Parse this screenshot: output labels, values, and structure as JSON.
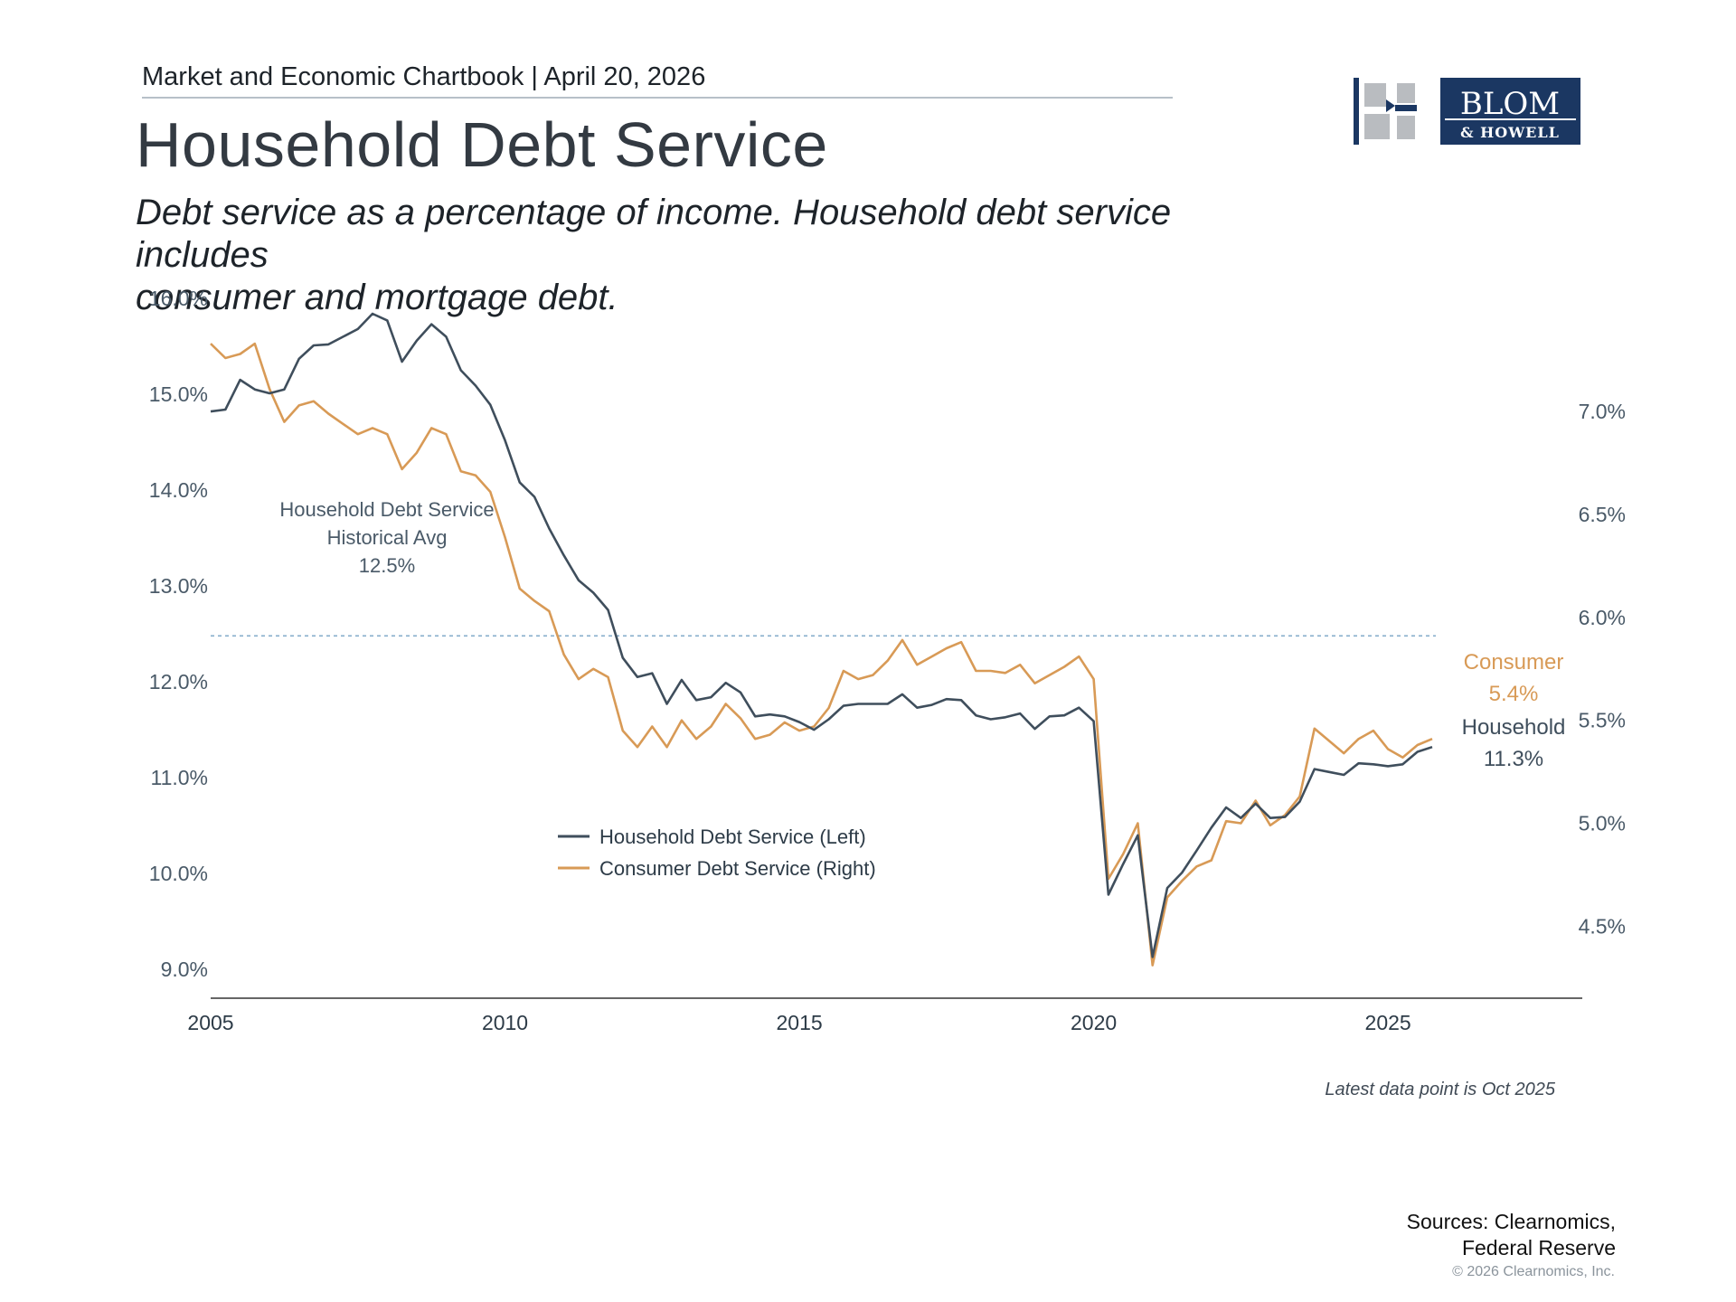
{
  "header": {
    "chartbook": "Market and Economic Chartbook | April 20, 2026",
    "title": "Household Debt Service",
    "subtitle_line1": "Debt service as a percentage of income. Household debt service includes",
    "subtitle_line2": "consumer and mortgage debt."
  },
  "logo": {
    "line1": "BLOM",
    "line2": "& HOWELL",
    "color": "#1b3762"
  },
  "colors": {
    "household": "#3f4e5c",
    "consumer": "#d89a56",
    "avg_line": "#8fb3cf",
    "axis": "#333333",
    "text": "#4a5a68"
  },
  "chart_data": {
    "type": "line",
    "x_ticks": [
      "2005",
      "2010",
      "2015",
      "2020",
      "2025"
    ],
    "xlim": [
      2005,
      2028.3
    ],
    "y_left_ticks": [
      "16.0%",
      "15.0%",
      "14.0%",
      "13.0%",
      "12.0%",
      "11.0%",
      "10.0%",
      "9.0%"
    ],
    "y_left_lim": [
      8.7,
      16.0
    ],
    "y_right_ticks": [
      "7.0%",
      "6.5%",
      "6.0%",
      "5.5%",
      "5.0%",
      "4.5%"
    ],
    "y_right_lim": [
      4.15,
      7.55
    ],
    "average": {
      "label_line1": "Household Debt Service",
      "label_line2": "Historical Avg",
      "label_value": "12.5%",
      "value": 12.48
    },
    "legend": {
      "household": "Household Debt Service (Left)",
      "consumer": "Consumer Debt Service (Right)"
    },
    "end_labels": {
      "consumer_name": "Consumer",
      "consumer_value": "5.4%",
      "household_name": "Household",
      "household_value": "11.3%"
    },
    "series": [
      {
        "name": "Household Debt Service (Left)",
        "axis": "left",
        "points": [
          [
            2005.0,
            14.82
          ],
          [
            2005.25,
            14.84
          ],
          [
            2005.5,
            15.15
          ],
          [
            2005.75,
            15.05
          ],
          [
            2006.0,
            15.01
          ],
          [
            2006.25,
            15.05
          ],
          [
            2006.5,
            15.37
          ],
          [
            2006.75,
            15.51
          ],
          [
            2007.0,
            15.52
          ],
          [
            2007.25,
            15.6
          ],
          [
            2007.5,
            15.68
          ],
          [
            2007.75,
            15.84
          ],
          [
            2008.0,
            15.77
          ],
          [
            2008.25,
            15.34
          ],
          [
            2008.5,
            15.56
          ],
          [
            2008.75,
            15.73
          ],
          [
            2009.0,
            15.6
          ],
          [
            2009.25,
            15.25
          ],
          [
            2009.5,
            15.09
          ],
          [
            2009.75,
            14.89
          ],
          [
            2010.0,
            14.52
          ],
          [
            2010.25,
            14.08
          ],
          [
            2010.5,
            13.93
          ],
          [
            2010.75,
            13.6
          ],
          [
            2011.0,
            13.32
          ],
          [
            2011.25,
            13.06
          ],
          [
            2011.5,
            12.93
          ],
          [
            2011.75,
            12.75
          ],
          [
            2012.0,
            12.25
          ],
          [
            2012.25,
            12.05
          ],
          [
            2012.5,
            12.09
          ],
          [
            2012.75,
            11.77
          ],
          [
            2013.0,
            12.02
          ],
          [
            2013.25,
            11.81
          ],
          [
            2013.5,
            11.84
          ],
          [
            2013.75,
            11.99
          ],
          [
            2014.0,
            11.89
          ],
          [
            2014.25,
            11.64
          ],
          [
            2014.5,
            11.66
          ],
          [
            2014.75,
            11.64
          ],
          [
            2015.0,
            11.58
          ],
          [
            2015.25,
            11.5
          ],
          [
            2015.5,
            11.61
          ],
          [
            2015.75,
            11.75
          ],
          [
            2016.0,
            11.77
          ],
          [
            2016.25,
            11.77
          ],
          [
            2016.5,
            11.77
          ],
          [
            2016.75,
            11.87
          ],
          [
            2017.0,
            11.73
          ],
          [
            2017.25,
            11.76
          ],
          [
            2017.5,
            11.82
          ],
          [
            2017.75,
            11.81
          ],
          [
            2018.0,
            11.65
          ],
          [
            2018.25,
            11.61
          ],
          [
            2018.5,
            11.63
          ],
          [
            2018.75,
            11.67
          ],
          [
            2019.0,
            11.51
          ],
          [
            2019.25,
            11.64
          ],
          [
            2019.5,
            11.65
          ],
          [
            2019.75,
            11.73
          ],
          [
            2020.0,
            11.59
          ],
          [
            2020.25,
            9.78
          ],
          [
            2020.5,
            10.1
          ],
          [
            2020.75,
            10.4
          ],
          [
            2021.0,
            9.13
          ],
          [
            2021.25,
            9.85
          ],
          [
            2021.5,
            10.01
          ],
          [
            2021.75,
            10.24
          ],
          [
            2022.0,
            10.48
          ],
          [
            2022.25,
            10.69
          ],
          [
            2022.5,
            10.58
          ],
          [
            2022.75,
            10.73
          ],
          [
            2023.0,
            10.58
          ],
          [
            2023.25,
            10.59
          ],
          [
            2023.5,
            10.75
          ],
          [
            2023.75,
            11.09
          ],
          [
            2024.0,
            11.06
          ],
          [
            2024.25,
            11.03
          ],
          [
            2024.5,
            11.15
          ],
          [
            2024.75,
            11.14
          ],
          [
            2025.0,
            11.12
          ],
          [
            2025.25,
            11.14
          ],
          [
            2025.5,
            11.27
          ],
          [
            2025.75,
            11.32
          ]
        ]
      },
      {
        "name": "Consumer Debt Service (Right)",
        "axis": "right",
        "points": [
          [
            2005.0,
            7.33
          ],
          [
            2005.25,
            7.26
          ],
          [
            2005.5,
            7.28
          ],
          [
            2005.75,
            7.33
          ],
          [
            2006.0,
            7.11
          ],
          [
            2006.25,
            6.95
          ],
          [
            2006.5,
            7.03
          ],
          [
            2006.75,
            7.05
          ],
          [
            2007.0,
            6.99
          ],
          [
            2007.25,
            6.94
          ],
          [
            2007.5,
            6.89
          ],
          [
            2007.75,
            6.92
          ],
          [
            2008.0,
            6.89
          ],
          [
            2008.25,
            6.72
          ],
          [
            2008.5,
            6.8
          ],
          [
            2008.75,
            6.92
          ],
          [
            2009.0,
            6.89
          ],
          [
            2009.25,
            6.71
          ],
          [
            2009.5,
            6.69
          ],
          [
            2009.75,
            6.61
          ],
          [
            2010.0,
            6.39
          ],
          [
            2010.25,
            6.14
          ],
          [
            2010.5,
            6.08
          ],
          [
            2010.75,
            6.03
          ],
          [
            2011.0,
            5.82
          ],
          [
            2011.25,
            5.7
          ],
          [
            2011.5,
            5.75
          ],
          [
            2011.75,
            5.71
          ],
          [
            2012.0,
            5.45
          ],
          [
            2012.25,
            5.37
          ],
          [
            2012.5,
            5.47
          ],
          [
            2012.75,
            5.37
          ],
          [
            2013.0,
            5.5
          ],
          [
            2013.25,
            5.41
          ],
          [
            2013.5,
            5.47
          ],
          [
            2013.75,
            5.58
          ],
          [
            2014.0,
            5.51
          ],
          [
            2014.25,
            5.41
          ],
          [
            2014.5,
            5.43
          ],
          [
            2014.75,
            5.49
          ],
          [
            2015.0,
            5.45
          ],
          [
            2015.25,
            5.47
          ],
          [
            2015.5,
            5.56
          ],
          [
            2015.75,
            5.74
          ],
          [
            2016.0,
            5.7
          ],
          [
            2016.25,
            5.72
          ],
          [
            2016.5,
            5.79
          ],
          [
            2016.75,
            5.89
          ],
          [
            2017.0,
            5.77
          ],
          [
            2017.25,
            5.81
          ],
          [
            2017.5,
            5.85
          ],
          [
            2017.75,
            5.88
          ],
          [
            2018.0,
            5.74
          ],
          [
            2018.25,
            5.74
          ],
          [
            2018.5,
            5.73
          ],
          [
            2018.75,
            5.77
          ],
          [
            2019.0,
            5.68
          ],
          [
            2019.25,
            5.72
          ],
          [
            2019.5,
            5.76
          ],
          [
            2019.75,
            5.81
          ],
          [
            2020.0,
            5.7
          ],
          [
            2020.25,
            4.73
          ],
          [
            2020.5,
            4.85
          ],
          [
            2020.75,
            5.0
          ],
          [
            2021.0,
            4.31
          ],
          [
            2021.25,
            4.64
          ],
          [
            2021.5,
            4.72
          ],
          [
            2021.75,
            4.79
          ],
          [
            2022.0,
            4.82
          ],
          [
            2022.25,
            5.01
          ],
          [
            2022.5,
            5.0
          ],
          [
            2022.75,
            5.11
          ],
          [
            2023.0,
            4.99
          ],
          [
            2023.25,
            5.04
          ],
          [
            2023.5,
            5.13
          ],
          [
            2023.75,
            5.46
          ],
          [
            2024.0,
            5.4
          ],
          [
            2024.25,
            5.34
          ],
          [
            2024.5,
            5.41
          ],
          [
            2024.75,
            5.45
          ],
          [
            2025.0,
            5.36
          ],
          [
            2025.25,
            5.32
          ],
          [
            2025.5,
            5.38
          ],
          [
            2025.75,
            5.41
          ]
        ]
      }
    ]
  },
  "footer": {
    "latest": "Latest data point is Oct 2025",
    "sources_line1": "Sources: Clearnomics,",
    "sources_line2": "Federal Reserve",
    "copyright": "© 2026 Clearnomics, Inc."
  }
}
